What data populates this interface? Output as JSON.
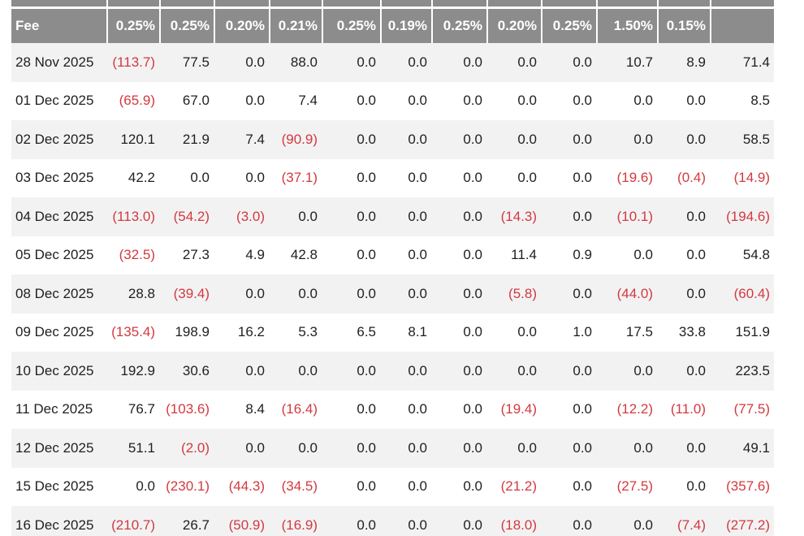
{
  "colors": {
    "header_bg": "#8c8c8c",
    "row_alt_bg": "#f2f2f3",
    "text": "#1f1f21",
    "negative": "#d3393e"
  },
  "table": {
    "first_column_header": "Fee",
    "columns": [
      "Fee",
      "0.25%",
      "0.25%",
      "0.20%",
      "0.21%",
      "0.25%",
      "0.19%",
      "0.25%",
      "0.20%",
      "0.25%",
      "1.50%",
      "0.15%",
      ""
    ],
    "rows": [
      {
        "date": "28 Nov 2025",
        "values": [
          "(113.7)",
          "77.5",
          "0.0",
          "88.0",
          "0.0",
          "0.0",
          "0.0",
          "0.0",
          "0.0",
          "10.7",
          "8.9",
          "71.4"
        ]
      },
      {
        "date": "01 Dec 2025",
        "values": [
          "(65.9)",
          "67.0",
          "0.0",
          "7.4",
          "0.0",
          "0.0",
          "0.0",
          "0.0",
          "0.0",
          "0.0",
          "0.0",
          "8.5"
        ]
      },
      {
        "date": "02 Dec 2025",
        "values": [
          "120.1",
          "21.9",
          "7.4",
          "(90.9)",
          "0.0",
          "0.0",
          "0.0",
          "0.0",
          "0.0",
          "0.0",
          "0.0",
          "58.5"
        ]
      },
      {
        "date": "03 Dec 2025",
        "values": [
          "42.2",
          "0.0",
          "0.0",
          "(37.1)",
          "0.0",
          "0.0",
          "0.0",
          "0.0",
          "0.0",
          "(19.6)",
          "(0.4)",
          "(14.9)"
        ]
      },
      {
        "date": "04 Dec 2025",
        "values": [
          "(113.0)",
          "(54.2)",
          "(3.0)",
          "0.0",
          "0.0",
          "0.0",
          "0.0",
          "(14.3)",
          "0.0",
          "(10.1)",
          "0.0",
          "(194.6)"
        ]
      },
      {
        "date": "05 Dec 2025",
        "values": [
          "(32.5)",
          "27.3",
          "4.9",
          "42.8",
          "0.0",
          "0.0",
          "0.0",
          "11.4",
          "0.9",
          "0.0",
          "0.0",
          "54.8"
        ]
      },
      {
        "date": "08 Dec 2025",
        "values": [
          "28.8",
          "(39.4)",
          "0.0",
          "0.0",
          "0.0",
          "0.0",
          "0.0",
          "(5.8)",
          "0.0",
          "(44.0)",
          "0.0",
          "(60.4)"
        ]
      },
      {
        "date": "09 Dec 2025",
        "values": [
          "(135.4)",
          "198.9",
          "16.2",
          "5.3",
          "6.5",
          "8.1",
          "0.0",
          "0.0",
          "1.0",
          "17.5",
          "33.8",
          "151.9"
        ]
      },
      {
        "date": "10 Dec 2025",
        "values": [
          "192.9",
          "30.6",
          "0.0",
          "0.0",
          "0.0",
          "0.0",
          "0.0",
          "0.0",
          "0.0",
          "0.0",
          "0.0",
          "223.5"
        ]
      },
      {
        "date": "11 Dec 2025",
        "values": [
          "76.7",
          "(103.6)",
          "8.4",
          "(16.4)",
          "0.0",
          "0.0",
          "0.0",
          "(19.4)",
          "0.0",
          "(12.2)",
          "(11.0)",
          "(77.5)"
        ]
      },
      {
        "date": "12 Dec 2025",
        "values": [
          "51.1",
          "(2.0)",
          "0.0",
          "0.0",
          "0.0",
          "0.0",
          "0.0",
          "0.0",
          "0.0",
          "0.0",
          "0.0",
          "49.1"
        ]
      },
      {
        "date": "15 Dec 2025",
        "values": [
          "0.0",
          "(230.1)",
          "(44.3)",
          "(34.5)",
          "0.0",
          "0.0",
          "0.0",
          "(21.2)",
          "0.0",
          "(27.5)",
          "0.0",
          "(357.6)"
        ]
      },
      {
        "date": "16 Dec 2025",
        "values": [
          "(210.7)",
          "26.7",
          "(50.9)",
          "(16.9)",
          "0.0",
          "0.0",
          "0.0",
          "(18.0)",
          "0.0",
          "0.0",
          "(7.4)",
          "(277.2)"
        ]
      }
    ]
  }
}
